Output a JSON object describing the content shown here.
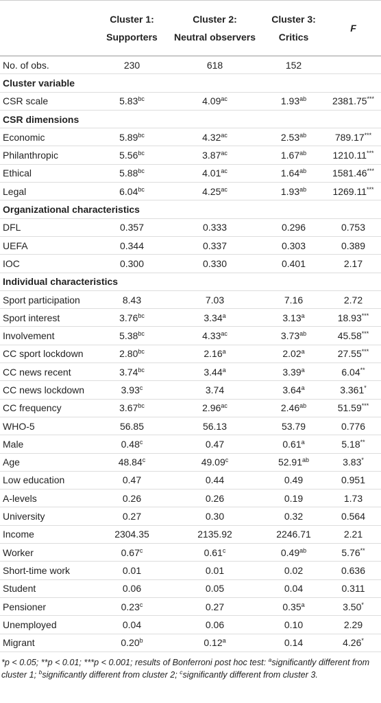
{
  "header": {
    "columns": [
      [
        "Cluster 1:",
        "Supporters"
      ],
      [
        "Cluster 2:",
        "Neutral observers"
      ],
      [
        "Cluster 3:",
        "Critics"
      ],
      [
        "F"
      ]
    ]
  },
  "table": {
    "rows": [
      {
        "label": "No. of obs.",
        "cells": [
          "230",
          "618",
          "152"
        ]
      },
      {
        "heading": "Cluster variable"
      },
      {
        "label": "CSR scale",
        "cells": [
          {
            "text": "5.83",
            "sup": "bc"
          },
          {
            "text": "4.09",
            "sup": "ac"
          },
          {
            "text": "1.93",
            "sup": "ab"
          },
          {
            "text": "2381.75",
            "sup": "***"
          }
        ]
      },
      {
        "heading": "CSR dimensions"
      },
      {
        "label": "Economic",
        "cells": [
          {
            "text": "5.89",
            "sup": "bc"
          },
          {
            "text": "4.32",
            "sup": "ac"
          },
          {
            "text": "2.53",
            "sup": "ab"
          },
          {
            "text": "789.17",
            "sup": "***"
          }
        ]
      },
      {
        "label": "Philanthropic",
        "cells": [
          {
            "text": "5.56",
            "sup": "bc"
          },
          {
            "text": "3.87",
            "sup": "ac"
          },
          {
            "text": "1.67",
            "sup": "ab"
          },
          {
            "text": "1210.11",
            "sup": "***"
          }
        ]
      },
      {
        "label": "Ethical",
        "cells": [
          {
            "text": "5.88",
            "sup": "bc"
          },
          {
            "text": "4.01",
            "sup": "ac"
          },
          {
            "text": "1.64",
            "sup": "ab"
          },
          {
            "text": "1581.46",
            "sup": "***"
          }
        ]
      },
      {
        "label": "Legal",
        "cells": [
          {
            "text": "6.04",
            "sup": "bc"
          },
          {
            "text": "4.25",
            "sup": "ac"
          },
          {
            "text": "1.93",
            "sup": "ab"
          },
          {
            "text": "1269.11",
            "sup": "***"
          }
        ]
      },
      {
        "heading": "Organizational characteristics"
      },
      {
        "label": "DFL",
        "cells": [
          "0.357",
          "0.333",
          "0.296",
          "0.753"
        ]
      },
      {
        "label": "UEFA",
        "cells": [
          "0.344",
          "0.337",
          "0.303",
          "0.389"
        ]
      },
      {
        "label": "IOC",
        "cells": [
          "0.300",
          "0.330",
          "0.401",
          "2.17"
        ]
      },
      {
        "heading": "Individual characteristics"
      },
      {
        "label": "Sport participation",
        "cells": [
          "8.43",
          "7.03",
          "7.16",
          "2.72"
        ]
      },
      {
        "label": "Sport interest",
        "cells": [
          {
            "text": "3.76",
            "sup": "bc"
          },
          {
            "text": "3.34",
            "sup": "a"
          },
          {
            "text": "3.13",
            "sup": "a"
          },
          {
            "text": "18.93",
            "sup": "***"
          }
        ]
      },
      {
        "label": "Involvement",
        "cells": [
          {
            "text": "5.38",
            "sup": "bc"
          },
          {
            "text": "4.33",
            "sup": "ac"
          },
          {
            "text": "3.73",
            "sup": "ab"
          },
          {
            "text": "45.58",
            "sup": "***"
          }
        ]
      },
      {
        "label": "CC sport lockdown",
        "cells": [
          {
            "text": "2.80",
            "sup": "bc"
          },
          {
            "text": "2.16",
            "sup": "a"
          },
          {
            "text": "2.02",
            "sup": "a"
          },
          {
            "text": "27.55",
            "sup": "***"
          }
        ]
      },
      {
        "label": "CC news recent",
        "cells": [
          {
            "text": "3.74",
            "sup": "bc"
          },
          {
            "text": "3.44",
            "sup": "a"
          },
          {
            "text": "3.39",
            "sup": "a"
          },
          {
            "text": "6.04",
            "sup": "**"
          }
        ]
      },
      {
        "label": "CC news lockdown",
        "cells": [
          {
            "text": "3.93",
            "sup": "c"
          },
          "3.74",
          {
            "text": "3.64",
            "sup": "a"
          },
          {
            "text": "3.361",
            "sup": "*"
          }
        ]
      },
      {
        "label": "CC frequency",
        "cells": [
          {
            "text": "3.67",
            "sup": "bc"
          },
          {
            "text": "2.96",
            "sup": "ac"
          },
          {
            "text": "2.46",
            "sup": "ab"
          },
          {
            "text": "51.59",
            "sup": "***"
          }
        ]
      },
      {
        "label": "WHO-5",
        "cells": [
          "56.85",
          "56.13",
          "53.79",
          "0.776"
        ]
      },
      {
        "label": "Male",
        "cells": [
          {
            "text": "0.48",
            "sup": "c"
          },
          "0.47",
          {
            "text": "0.61",
            "sup": "a"
          },
          {
            "text": "5.18",
            "sup": "**"
          }
        ]
      },
      {
        "label": "Age",
        "cells": [
          {
            "text": "48.84",
            "sup": "c"
          },
          {
            "text": "49.09",
            "sup": "c"
          },
          {
            "text": "52.91",
            "sup": "ab"
          },
          {
            "text": "3.83",
            "sup": "*"
          }
        ]
      },
      {
        "label": "Low education",
        "cells": [
          "0.47",
          "0.44",
          "0.49",
          "0.951"
        ]
      },
      {
        "label": "A-levels",
        "cells": [
          "0.26",
          "0.26",
          "0.19",
          "1.73"
        ]
      },
      {
        "label": "University",
        "cells": [
          "0.27",
          "0.30",
          "0.32",
          "0.564"
        ]
      },
      {
        "label": "Income",
        "cells": [
          "2304.35",
          "2135.92",
          "2246.71",
          "2.21"
        ]
      },
      {
        "label": "Worker",
        "cells": [
          {
            "text": "0.67",
            "sup": "c"
          },
          {
            "text": "0.61",
            "sup": "c"
          },
          {
            "text": "0.49",
            "sup": "ab"
          },
          {
            "text": "5.76",
            "sup": "**"
          }
        ]
      },
      {
        "label": "Short-time work",
        "cells": [
          "0.01",
          "0.01",
          "0.02",
          "0.636"
        ]
      },
      {
        "label": "Student",
        "cells": [
          "0.06",
          "0.05",
          "0.04",
          "0.311"
        ]
      },
      {
        "label": "Pensioner",
        "cells": [
          {
            "text": "0.23",
            "sup": "c"
          },
          "0.27",
          {
            "text": "0.35",
            "sup": "a"
          },
          {
            "text": "3.50",
            "sup": "*"
          }
        ]
      },
      {
        "label": "Unemployed",
        "cells": [
          "0.04",
          "0.06",
          "0.10",
          "2.29"
        ]
      },
      {
        "label": "Migrant",
        "cells": [
          {
            "text": "0.20",
            "sup": "b"
          },
          {
            "text": "0.12",
            "sup": "a"
          },
          "0.14",
          {
            "text": "4.26",
            "sup": "*"
          }
        ]
      }
    ]
  },
  "footnote": [
    {
      "text": "*p < 0.05; **p < 0.01; ***p < 0.001; results of Bonferroni post hoc test: "
    },
    {
      "sup": "a"
    },
    {
      "text": "significantly different from cluster 1; "
    },
    {
      "sup": "b"
    },
    {
      "text": "significantly different from cluster 2; "
    },
    {
      "sup": "c"
    },
    {
      "text": "significantly different from cluster 3."
    }
  ]
}
